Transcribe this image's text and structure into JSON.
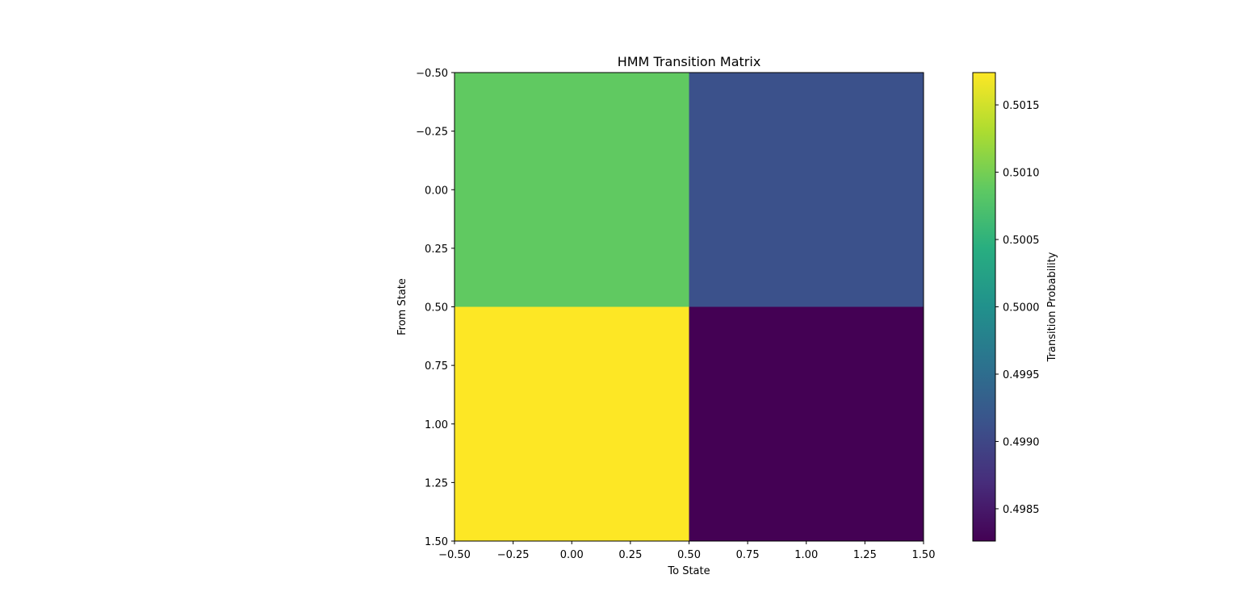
{
  "chart_data": {
    "type": "heatmap",
    "title": "HMM Transition Matrix",
    "xlabel": "To State",
    "ylabel": "From State",
    "colorbar_label": "Transition Probability",
    "colormap": "viridis",
    "xlim": [
      -0.5,
      1.5
    ],
    "ylim": [
      1.5,
      -0.5
    ],
    "xticks": [
      "−0.50",
      "−0.25",
      "0.00",
      "0.25",
      "0.50",
      "0.75",
      "1.00",
      "1.25",
      "1.50"
    ],
    "yticks": [
      "−0.50",
      "−0.25",
      "0.00",
      "0.25",
      "0.50",
      "0.75",
      "1.00",
      "1.25",
      "1.50"
    ],
    "matrix": [
      [
        0.50088,
        0.49912
      ],
      [
        0.50174,
        0.49826
      ]
    ],
    "colorbar_range": [
      0.49826,
      0.50174
    ],
    "colorbar_ticks": [
      "0.4985",
      "0.4990",
      "0.4995",
      "0.5000",
      "0.5005",
      "0.5010",
      "0.5015"
    ],
    "grid": false
  }
}
